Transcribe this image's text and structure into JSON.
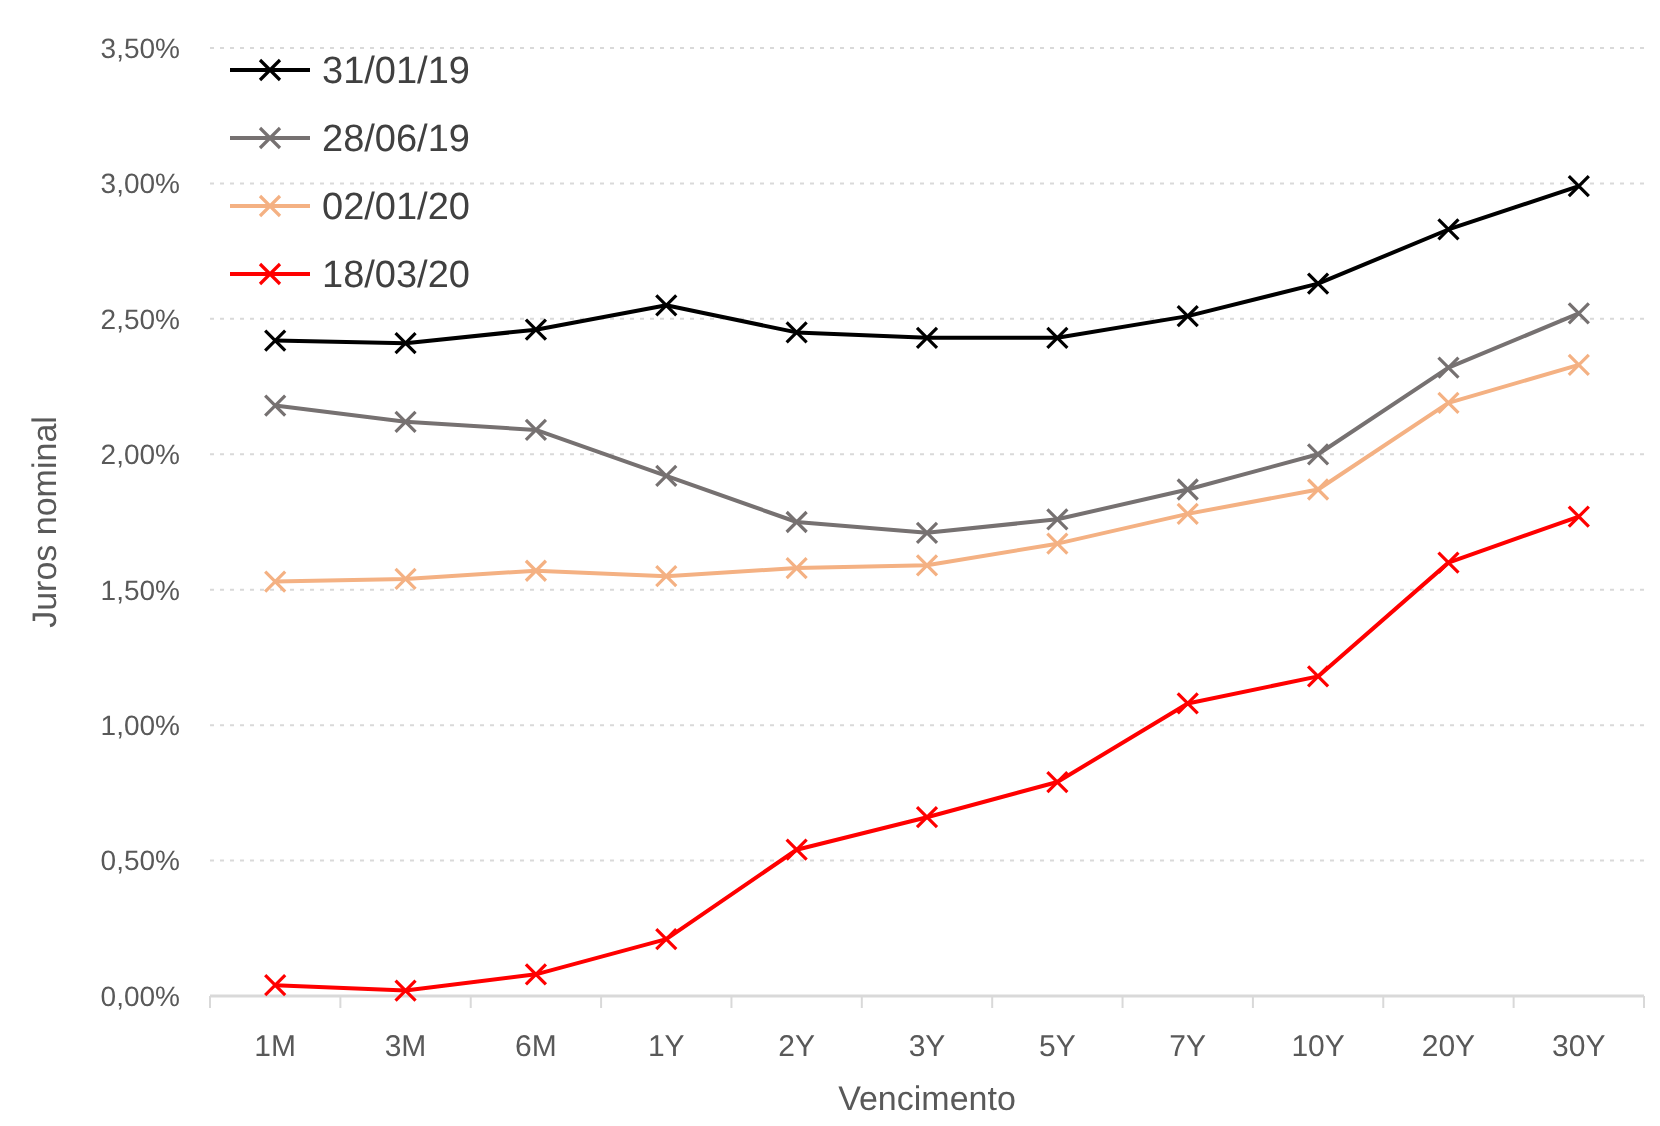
{
  "chart_data": {
    "type": "line",
    "xlabel": "Vencimento",
    "ylabel": "Juros nominal",
    "categories": [
      "1M",
      "3M",
      "6M",
      "1Y",
      "2Y",
      "3Y",
      "5Y",
      "7Y",
      "10Y",
      "20Y",
      "30Y"
    ],
    "series": [
      {
        "name": "31/01/19",
        "color": "#000000",
        "values": [
          2.42,
          2.41,
          2.46,
          2.55,
          2.45,
          2.43,
          2.43,
          2.51,
          2.63,
          2.83,
          2.99
        ]
      },
      {
        "name": "28/06/19",
        "color": "#767171",
        "values": [
          2.18,
          2.12,
          2.09,
          1.92,
          1.75,
          1.71,
          1.76,
          1.87,
          2.0,
          2.32,
          2.52
        ]
      },
      {
        "name": "02/01/20",
        "color": "#f4b183",
        "values": [
          1.53,
          1.54,
          1.57,
          1.55,
          1.58,
          1.59,
          1.67,
          1.78,
          1.87,
          2.19,
          2.33
        ]
      },
      {
        "name": "18/03/20",
        "color": "#ff0000",
        "values": [
          0.04,
          0.02,
          0.08,
          0.21,
          0.54,
          0.66,
          0.79,
          1.08,
          1.18,
          1.6,
          1.77
        ]
      }
    ],
    "ylim": [
      0,
      3.5
    ],
    "yticks": [
      {
        "value": 0,
        "label": "0,00%"
      },
      {
        "value": 0.5,
        "label": "0,50%"
      },
      {
        "value": 1,
        "label": "1,00%"
      },
      {
        "value": 1.5,
        "label": "1,50%"
      },
      {
        "value": 2,
        "label": "2,00%"
      },
      {
        "value": 2.5,
        "label": "2,50%"
      },
      {
        "value": 3,
        "label": "3,00%"
      },
      {
        "value": 3.5,
        "label": "3,50%"
      }
    ],
    "grid": "y",
    "legend": "top left",
    "marker": "cross",
    "line_style": "solid"
  }
}
